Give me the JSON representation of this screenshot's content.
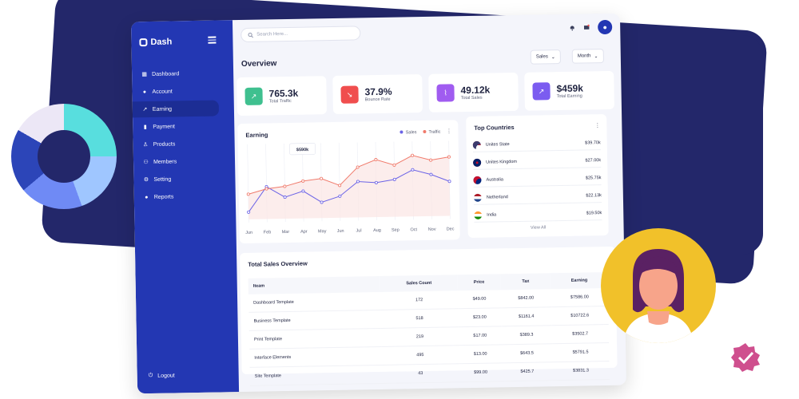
{
  "sidebar": {
    "logo": "Dash",
    "items": [
      {
        "label": "Dashboard",
        "icon": "grid-icon"
      },
      {
        "label": "Account",
        "icon": "user-icon"
      },
      {
        "label": "Earning",
        "icon": "trend-icon"
      },
      {
        "label": "Payment",
        "icon": "bar-chart-icon"
      },
      {
        "label": "Products",
        "icon": "person-icon"
      },
      {
        "label": "Members",
        "icon": "group-icon"
      },
      {
        "label": "Setting",
        "icon": "gear-icon"
      },
      {
        "label": "Reports",
        "icon": "info-icon"
      }
    ],
    "active_index": 2,
    "logout": "Logout"
  },
  "header": {
    "search_placeholder": "Search Here..."
  },
  "overview": {
    "title": "Overview",
    "filters": [
      "Sales",
      "Month"
    ]
  },
  "stats": [
    {
      "value": "765.3k",
      "label": "Total Traffic",
      "color": "#3fc08f"
    },
    {
      "value": "37.9%",
      "label": "Bounce Rate",
      "color": "#f04e4e"
    },
    {
      "value": "49.12k",
      "label": "Total Sales",
      "color": "#a05cf0"
    },
    {
      "value": "$459k",
      "label": "Total Earning",
      "color": "#7b5cf0"
    }
  ],
  "earning_chart": {
    "title": "Earning",
    "legend": [
      "Sales",
      "Traffic"
    ],
    "tooltip": "$590k",
    "chart_data": {
      "type": "line",
      "categories": [
        "Jun",
        "Feb",
        "Mar",
        "Apr",
        "May",
        "Jun",
        "Jul",
        "Aug",
        "Sep",
        "Oct",
        "Nov",
        "Dec"
      ],
      "series": [
        {
          "name": "Sales",
          "color": "#6b63e6",
          "values": [
            10,
            45,
            30,
            38,
            22,
            30,
            50,
            48,
            52,
            65,
            58,
            48
          ]
        },
        {
          "name": "Traffic",
          "color": "#f07a6b",
          "values": [
            35,
            42,
            45,
            52,
            55,
            45,
            70,
            80,
            72,
            85,
            78,
            82
          ]
        }
      ],
      "ylim": [
        0,
        100
      ]
    }
  },
  "top_countries": {
    "title": "Top Countries",
    "rows": [
      {
        "name": "Unites State",
        "amount": "$39.70k",
        "flag": "us"
      },
      {
        "name": "Unites Kingdom",
        "amount": "$27.00k",
        "flag": "uk"
      },
      {
        "name": "Australia",
        "amount": "$25.75k",
        "flag": "au"
      },
      {
        "name": "Netherland",
        "amount": "$22.13k",
        "flag": "nl"
      },
      {
        "name": "India",
        "amount": "$19.50k",
        "flag": "in"
      }
    ],
    "view_all": "View All"
  },
  "sales_table": {
    "title": "Total Sales Overview",
    "headers": [
      "Iteam",
      "Sales Count",
      "Price",
      "Tax",
      "Earning"
    ],
    "rows": [
      [
        "Dashboard Template",
        "172",
        "$49.00",
        "$842.00",
        "$7586.00"
      ],
      [
        "Business Template",
        "518",
        "$23.00",
        "$1161.4",
        "$10722.6"
      ],
      [
        "Print Template",
        "219",
        "$17.00",
        "$389.3",
        "$3502.7"
      ],
      [
        "Interface Elements",
        "495",
        "$13.00",
        "$643.5",
        "$5791.5"
      ],
      [
        "Site Template",
        "43",
        "$99.00",
        "$425.7",
        "$3831.3"
      ]
    ]
  },
  "donut_chart": {
    "chart_data": {
      "type": "pie",
      "values": [
        25,
        19,
        19,
        20,
        17
      ],
      "colors": [
        "#58dede",
        "#9fc6ff",
        "#6f8af5",
        "#2c45b8",
        "#ece7f6"
      ]
    }
  }
}
